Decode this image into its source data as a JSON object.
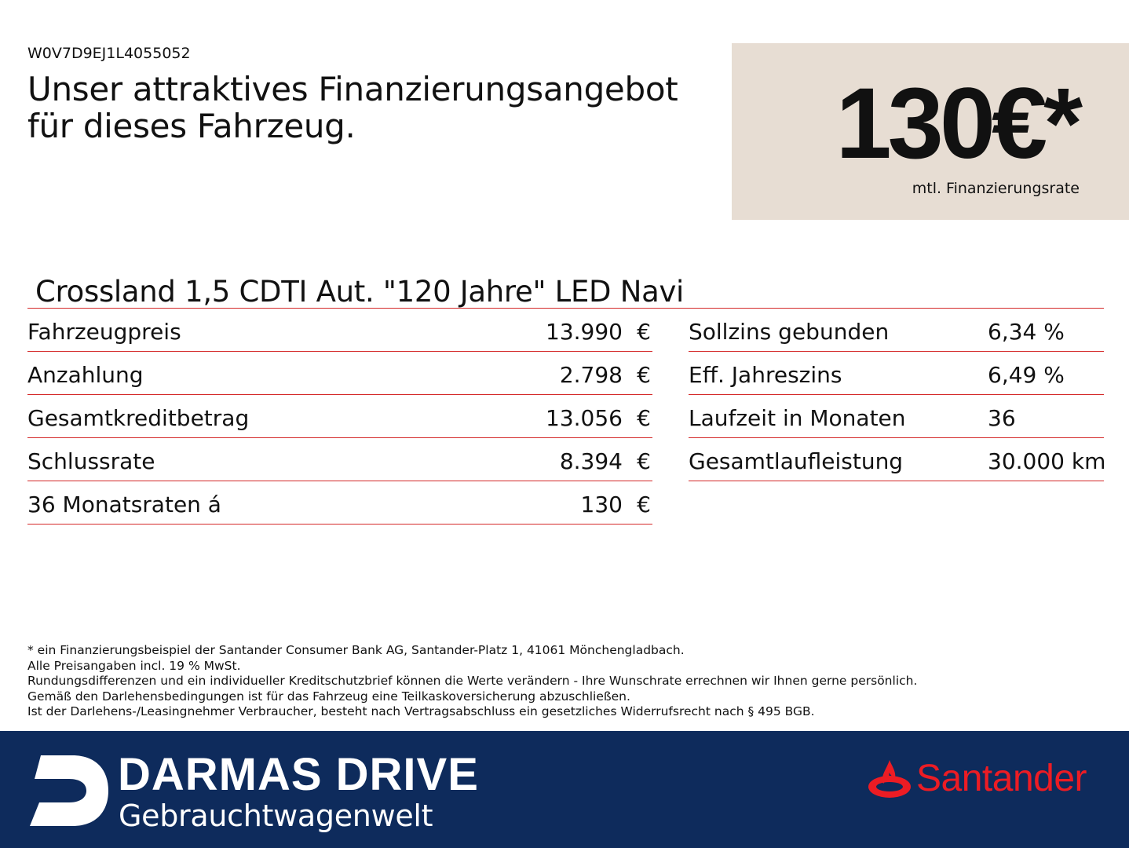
{
  "vin": "W0V7D9EJ1L4055052",
  "headline": {
    "line1": "Unser attraktives Finanzierungsangebot",
    "line2": "für dieses Fahrzeug."
  },
  "price_box": {
    "amount": "130€*",
    "caption": "mtl. Finanzierungsrate",
    "background": "#e7ddd3"
  },
  "model": "Crossland 1,5 CDTI Aut. \"120 Jahre\" LED Navi",
  "left_table": [
    {
      "label": "Fahrzeugpreis",
      "value": "13.990",
      "currency": "€"
    },
    {
      "label": "Anzahlung",
      "value": "2.798",
      "currency": "€"
    },
    {
      "label": "Gesamtkreditbetrag",
      "value": "13.056",
      "currency": "€"
    },
    {
      "label": "Schlussrate",
      "value": "8.394",
      "currency": "€"
    },
    {
      "label": "36 Monatsraten á",
      "value": "130",
      "currency": "€"
    }
  ],
  "right_table": [
    {
      "label": "Sollzins gebunden",
      "value": "6,34 %"
    },
    {
      "label": "Eff. Jahreszins",
      "value": "6,49 %"
    },
    {
      "label": "Laufzeit in Monaten",
      "value": "36"
    },
    {
      "label": "Gesamtlaufleistung",
      "value": "30.000 km"
    }
  ],
  "footnotes": [
    "* ein Finanzierungsbeispiel der Santander Consumer Bank AG, Santander-Platz 1, 41061 Mönchengladbach.",
    "Alle Preisangaben incl. 19 % MwSt.",
    "Rundungsdifferenzen und ein individueller Kreditschutzbrief können die Werte verändern - Ihre Wunschrate errechnen wir Ihnen gerne persönlich.",
    "Gemäß den Darlehensbedingungen ist für das Fahrzeug eine Teilkaskoversicherung abzuschließen.",
    "Ist der Darlehens-/Leasingnehmer Verbraucher, besteht nach Vertragsabschluss ein gesetzliches Widerrufsrecht nach § 495 BGB."
  ],
  "footer": {
    "brand_title": "DARMAS DRIVE",
    "brand_subtitle": "Gebrauchtwagenwelt",
    "partner": "Santander",
    "background": "#0e2b5c",
    "partner_color": "#ec1c24",
    "rule_color": "#d42929"
  }
}
